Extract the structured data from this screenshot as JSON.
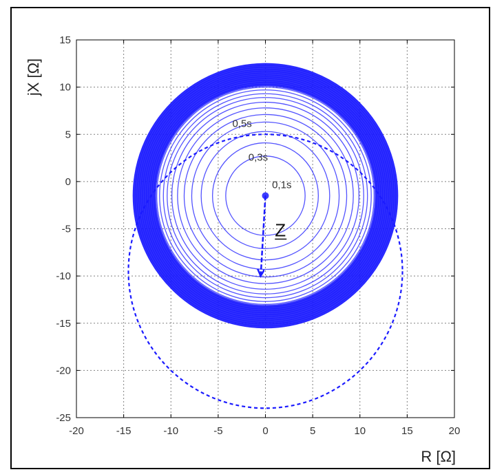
{
  "chart_data": {
    "type": "line",
    "title": "",
    "xlabel": "R [Ω]",
    "ylabel": "jX [Ω]",
    "xlim": [
      -20,
      20
    ],
    "ylim": [
      -25,
      15
    ],
    "xticks": [
      "-20",
      "-15",
      "-10",
      "-5",
      "0",
      "5",
      "10",
      "15",
      "20"
    ],
    "yticks": [
      "15",
      "10",
      "5",
      "0",
      "-5",
      "-10",
      "-15",
      "-20",
      "-25"
    ],
    "grid": true,
    "colors": {
      "series": "#1a1aff",
      "grid": "#808080",
      "axes": "#000000"
    },
    "series": [
      {
        "kind": "circle-family",
        "center": [
          0,
          -1.5
        ],
        "outer_radius": 14,
        "radii": [
          4.2,
          5.6,
          6.8,
          7.8,
          8.6,
          9.3,
          9.9,
          10.4,
          10.8,
          11.2,
          11.5,
          11.8,
          12.0,
          12.2,
          12.4,
          12.6,
          12.8,
          13.0,
          13.2,
          13.4,
          13.6,
          13.8,
          14.0
        ]
      },
      {
        "kind": "dashed-circle",
        "center": [
          0,
          -9.5
        ],
        "radius": 14.5
      }
    ],
    "arrow": {
      "from": [
        0,
        -1.5
      ],
      "to": [
        -0.5,
        -10
      ],
      "label": "Z"
    },
    "annotations": [
      {
        "text": "0,5s",
        "x": -3.5,
        "y": 5.8
      },
      {
        "text": "0,3s",
        "x": -1.8,
        "y": 2.2
      },
      {
        "text": "0,1s",
        "x": 0.7,
        "y": -0.7
      }
    ]
  }
}
